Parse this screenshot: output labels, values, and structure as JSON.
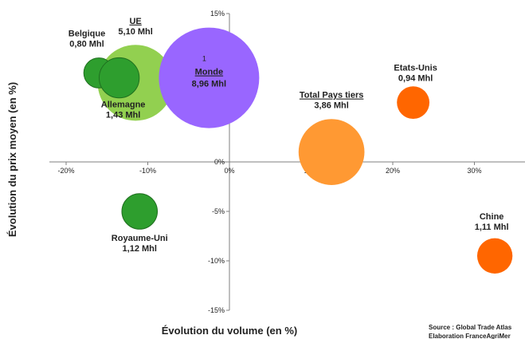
{
  "chart_data": {
    "type": "scatter",
    "variant": "bubble",
    "xlabel": "Évolution du volume (en %)",
    "ylabel": "Évolution du prix moyen (en %)",
    "xlim": [
      -0.2,
      0.35
    ],
    "ylim": [
      -0.15,
      0.15
    ],
    "x_ticks": [
      "-20%",
      "-10%",
      "0%",
      "10%",
      "20%",
      "30%"
    ],
    "y_ticks": [
      "15%",
      "10%",
      "5%",
      "0%",
      "-5%",
      "-10%",
      "-15%"
    ],
    "grid": false,
    "points": [
      {
        "name": "UE",
        "value_label": "5,10 Mhl",
        "volume": 5.1,
        "x": -0.115,
        "y": 0.08,
        "color": "#92d050",
        "underline": true
      },
      {
        "name": "Monde",
        "value_label": "8,96 Mhl",
        "volume": 8.96,
        "x": -0.025,
        "y": 0.085,
        "color": "#9966ff",
        "underline": true,
        "marker": "1"
      },
      {
        "name": "Belgique",
        "value_label": "0,80 Mhl",
        "volume": 0.8,
        "x": -0.16,
        "y": 0.09,
        "color": "#2e9e2e"
      },
      {
        "name": "Allemagne",
        "value_label": "1,43 Mhl",
        "volume": 1.43,
        "x": -0.135,
        "y": 0.085,
        "color": "#2e9e2e"
      },
      {
        "name": "Royaume-Uni",
        "value_label": "1,12 Mhl",
        "volume": 1.12,
        "x": -0.11,
        "y": -0.05,
        "color": "#2e9e2e"
      },
      {
        "name": "Total Pays tiers",
        "value_label": "3,86 Mhl",
        "volume": 3.86,
        "x": 0.125,
        "y": 0.01,
        "color": "#ff9933",
        "underline": true
      },
      {
        "name": "Etats-Unis",
        "value_label": "0,94 Mhl",
        "volume": 0.94,
        "x": 0.225,
        "y": 0.06,
        "color": "#ff6600"
      },
      {
        "name": "Chine",
        "value_label": "1,11 Mhl",
        "volume": 1.11,
        "x": 0.325,
        "y": -0.095,
        "color": "#ff6600"
      }
    ],
    "source_lines": [
      "Source : Global Trade Atlas",
      "Elaboration FranceAgriMer"
    ]
  }
}
